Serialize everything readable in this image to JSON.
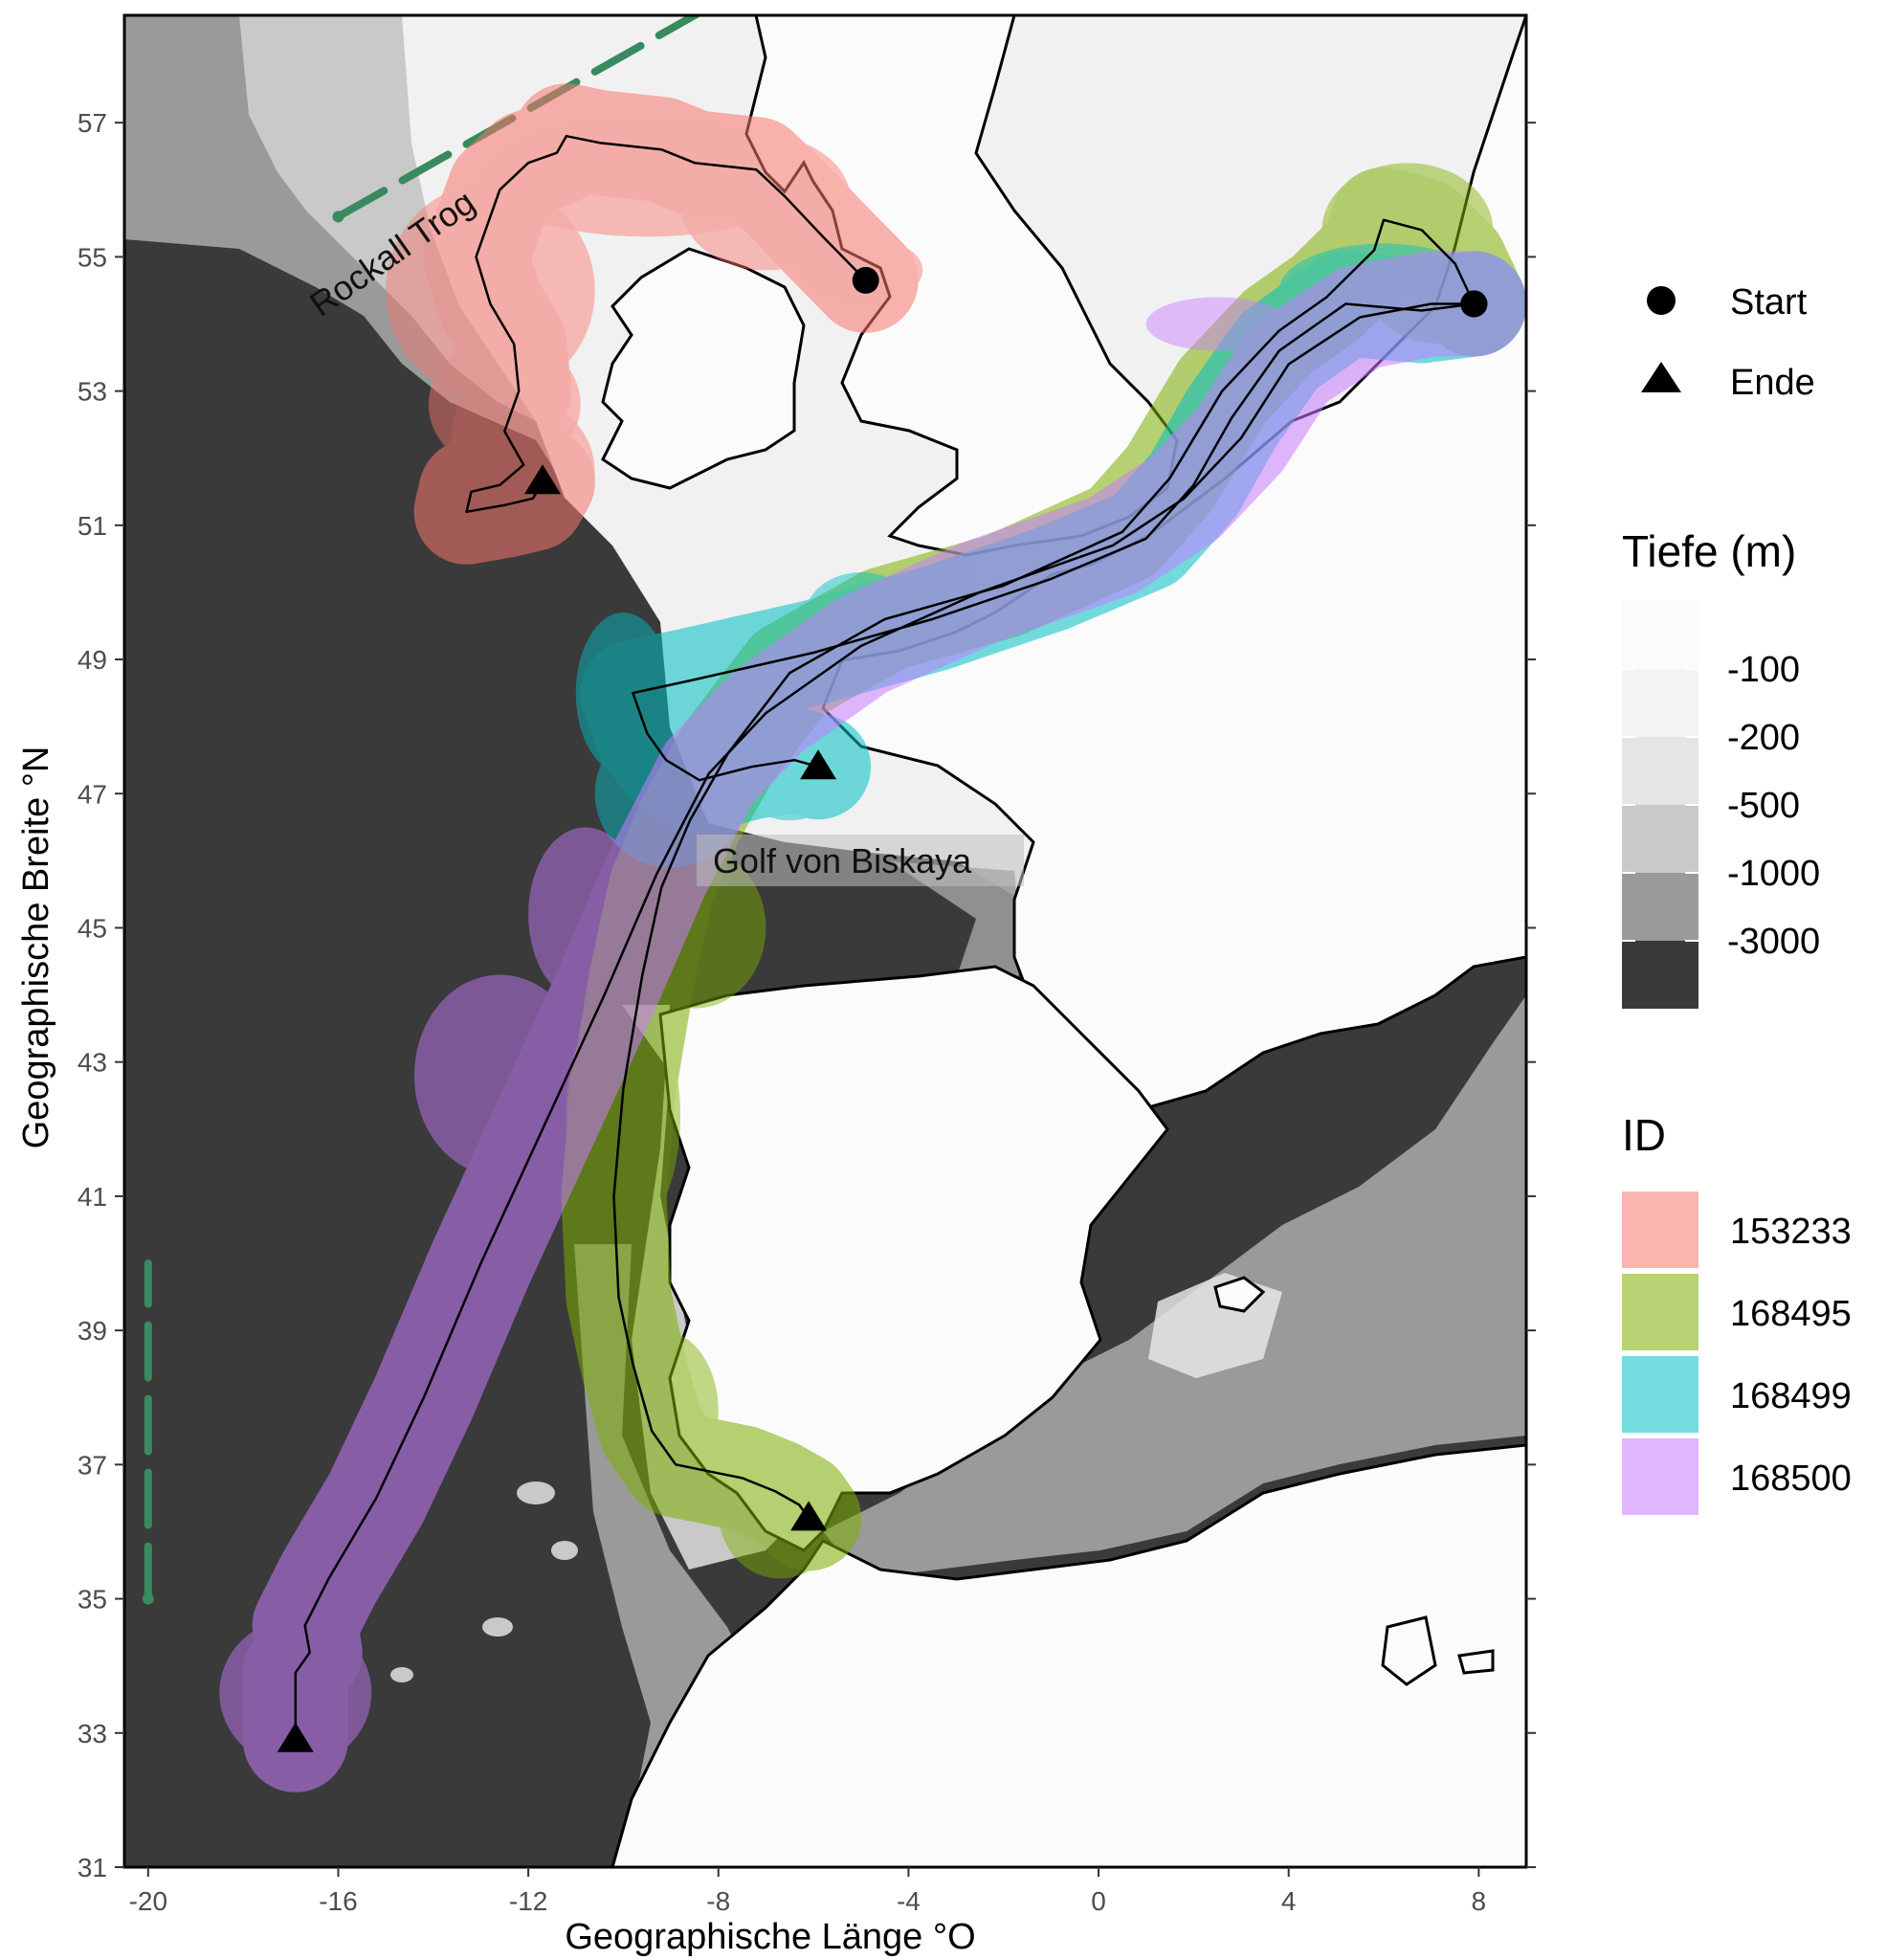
{
  "map": {
    "xlabel": "Geographische Länge  °O",
    "ylabel": "Geographische Breite  °N",
    "x_range": [
      -20.5,
      9
    ],
    "y_range": [
      31,
      58.6
    ],
    "x_ticks": [
      -20,
      -16,
      -12,
      -8,
      -4,
      0,
      4,
      8
    ],
    "y_ticks": [
      31,
      33,
      35,
      37,
      39,
      41,
      43,
      45,
      47,
      49,
      51,
      53,
      55,
      57
    ],
    "x_tick_labels": [
      "-20",
      "-16",
      "-12",
      "-8",
      "-4",
      "0",
      "4",
      "8"
    ],
    "y_tick_labels": [
      "31",
      "33",
      "35",
      "37",
      "39",
      "41",
      "43",
      "45",
      "47",
      "49",
      "51",
      "53",
      "55",
      "57"
    ],
    "annotations": {
      "rockall": "Rockall Trog",
      "biscay": "Golf von Biskaya"
    },
    "shape_legend": {
      "start": "Start",
      "end": "Ende"
    },
    "depth_legend": {
      "title": "Tiefe (m)",
      "labels": [
        "-100",
        "-200",
        "-500",
        "-1000",
        "-3000"
      ],
      "colors": [
        "#fbfbfb",
        "#f3f3f3",
        "#e5e5e5",
        "#c9c9c9",
        "#9a9a9a",
        "#3a3a3a"
      ]
    },
    "id_legend": {
      "title": "ID",
      "items": [
        {
          "label": "153233",
          "color": "#f8766d"
        },
        {
          "label": "168495",
          "color": "#7cae00"
        },
        {
          "label": "168499",
          "color": "#00bfc4"
        },
        {
          "label": "168500",
          "color": "#c77cff"
        }
      ]
    },
    "dashed_lines": [
      {
        "color": "#3a8a5f",
        "points": [
          [
            -16,
            55.6
          ],
          [
            -8,
            58.8
          ]
        ]
      },
      {
        "color": "#3a8a5f",
        "points": [
          [
            -20,
            35
          ],
          [
            -20,
            40
          ]
        ]
      }
    ],
    "tracks": [
      {
        "id": "153233",
        "start": [
          -4.9,
          54.65
        ],
        "end": [
          -11.7,
          51.65
        ],
        "path": [
          [
            -4.9,
            54.65
          ],
          [
            -5.8,
            55.3
          ],
          [
            -6.6,
            55.9
          ],
          [
            -7.2,
            56.3
          ],
          [
            -8.5,
            56.4
          ],
          [
            -9.2,
            56.6
          ],
          [
            -10.5,
            56.7
          ],
          [
            -11.2,
            56.8
          ],
          [
            -11.4,
            56.55
          ],
          [
            -12.0,
            56.4
          ],
          [
            -12.6,
            56.0
          ],
          [
            -13.1,
            55.0
          ],
          [
            -12.8,
            54.3
          ],
          [
            -12.3,
            53.7
          ],
          [
            -12.2,
            53.0
          ],
          [
            -12.5,
            52.4
          ],
          [
            -12.1,
            51.9
          ],
          [
            -12.6,
            51.6
          ],
          [
            -13.2,
            51.5
          ],
          [
            -13.3,
            51.2
          ],
          [
            -12.5,
            51.3
          ],
          [
            -11.9,
            51.4
          ],
          [
            -11.7,
            51.65
          ]
        ],
        "blobs": [
          [
            -9.5,
            56.2,
            3.5,
            0.9
          ],
          [
            -7.0,
            55.8,
            1.8,
            1.0
          ],
          [
            -12.8,
            54.5,
            2.2,
            1.6
          ],
          [
            -12.5,
            52.8,
            1.6,
            1.0
          ],
          [
            -12.2,
            51.8,
            1.6,
            1.1
          ],
          [
            -5.0,
            54.8,
            1.3,
            0.5
          ]
        ]
      },
      {
        "id": "168495",
        "start": [
          7.9,
          54.3
        ],
        "end": [
          -6.1,
          36.2
        ],
        "path": [
          [
            7.9,
            54.3
          ],
          [
            7.5,
            54.9
          ],
          [
            6.8,
            55.4
          ],
          [
            6.0,
            55.55
          ],
          [
            5.8,
            55.1
          ],
          [
            4.8,
            54.4
          ],
          [
            3.8,
            53.9
          ],
          [
            2.6,
            53.0
          ],
          [
            1.5,
            51.7
          ],
          [
            0.5,
            50.9
          ],
          [
            -2.0,
            50.1
          ],
          [
            -4.5,
            49.6
          ],
          [
            -6.5,
            48.8
          ],
          [
            -7.8,
            47.6
          ],
          [
            -8.6,
            46.6
          ],
          [
            -9.2,
            45.6
          ],
          [
            -9.6,
            44.3
          ],
          [
            -10.0,
            42.6
          ],
          [
            -10.2,
            41.0
          ],
          [
            -10.1,
            39.5
          ],
          [
            -9.8,
            38.5
          ],
          [
            -9.4,
            37.5
          ],
          [
            -8.9,
            37.0
          ],
          [
            -7.5,
            36.8
          ],
          [
            -6.8,
            36.6
          ],
          [
            -6.3,
            36.4
          ],
          [
            -6.1,
            36.2
          ]
        ],
        "blobs": [
          [
            6.5,
            55.4,
            1.8,
            1.0
          ],
          [
            7.2,
            54.5,
            1.5,
            0.8
          ],
          [
            -8.5,
            45.0,
            1.5,
            1.2
          ],
          [
            -10.0,
            42.2,
            1.2,
            1.8
          ],
          [
            -10.0,
            39.5,
            1.0,
            1.5
          ],
          [
            -9.2,
            37.8,
            1.2,
            1.2
          ],
          [
            -6.7,
            36.3,
            1.3,
            1.0
          ]
        ]
      },
      {
        "id": "168499",
        "start": [
          7.9,
          54.3
        ],
        "end": [
          -5.9,
          47.4
        ],
        "path": [
          [
            7.9,
            54.3
          ],
          [
            6.8,
            54.2
          ],
          [
            5.2,
            54.3
          ],
          [
            3.8,
            53.6
          ],
          [
            2.8,
            52.6
          ],
          [
            2.0,
            51.6
          ],
          [
            1.0,
            50.8
          ],
          [
            -1.0,
            50.2
          ],
          [
            -3.5,
            49.6
          ],
          [
            -6.0,
            49.1
          ],
          [
            -8.5,
            48.7
          ],
          [
            -9.8,
            48.5
          ],
          [
            -9.5,
            47.9
          ],
          [
            -9.1,
            47.5
          ],
          [
            -8.4,
            47.2
          ],
          [
            -7.3,
            47.4
          ],
          [
            -6.4,
            47.5
          ],
          [
            -5.9,
            47.4
          ]
        ],
        "blobs": [
          [
            6.0,
            54.5,
            2.2,
            0.7
          ],
          [
            -10.0,
            48.5,
            1.0,
            1.2
          ],
          [
            -9.0,
            47.0,
            1.6,
            1.1
          ],
          [
            -6.5,
            47.4,
            1.2,
            0.8
          ],
          [
            -5.0,
            49.6,
            1.2,
            0.7
          ]
        ]
      },
      {
        "id": "168500",
        "start": [
          7.9,
          54.3
        ],
        "end": [
          -16.9,
          32.9
        ],
        "path": [
          [
            7.9,
            54.3
          ],
          [
            7.0,
            54.3
          ],
          [
            5.5,
            54.1
          ],
          [
            4.0,
            53.4
          ],
          [
            3.0,
            52.3
          ],
          [
            1.8,
            51.4
          ],
          [
            0.3,
            50.7
          ],
          [
            -2.5,
            50.0
          ],
          [
            -5.0,
            49.2
          ],
          [
            -7.0,
            48.2
          ],
          [
            -8.2,
            47.3
          ],
          [
            -9.3,
            45.8
          ],
          [
            -10.4,
            44.0
          ],
          [
            -11.7,
            42.0
          ],
          [
            -13.0,
            40.0
          ],
          [
            -14.2,
            38.0
          ],
          [
            -15.2,
            36.5
          ],
          [
            -16.2,
            35.3
          ],
          [
            -16.7,
            34.6
          ],
          [
            -16.6,
            34.2
          ],
          [
            -16.9,
            33.9
          ],
          [
            -16.9,
            32.9
          ]
        ],
        "blobs": [
          [
            -12.6,
            42.8,
            1.8,
            1.5
          ],
          [
            -10.8,
            45.2,
            1.2,
            1.3
          ],
          [
            -16.9,
            33.6,
            1.6,
            1.1
          ],
          [
            2.5,
            54.0,
            1.5,
            0.4
          ]
        ]
      }
    ]
  }
}
